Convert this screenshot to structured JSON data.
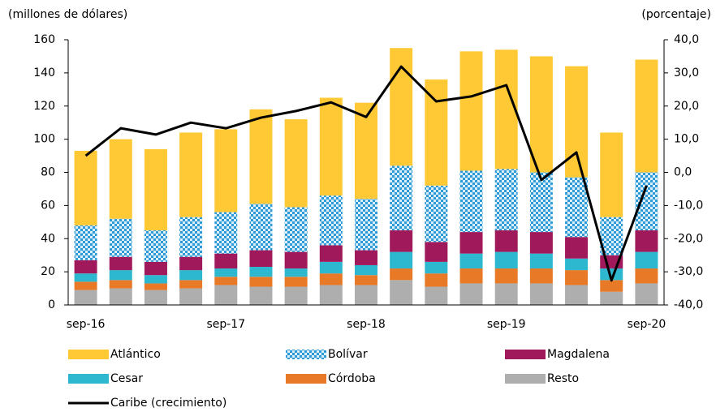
{
  "chart_data": {
    "type": "bar",
    "y_label": "(millones de dólares)",
    "y2_label": "(porcentaje)",
    "categories": [
      "sep-16",
      null,
      null,
      null,
      "sep-17",
      null,
      null,
      null,
      "sep-18",
      null,
      null,
      null,
      "sep-19",
      null,
      null,
      null,
      "sep-20"
    ],
    "stacked": true,
    "series": [
      {
        "name": "Resto",
        "color": "#aeaeae",
        "values": [
          9,
          10,
          9,
          10,
          12,
          11,
          11,
          12,
          12,
          15,
          11,
          13,
          13,
          13,
          12,
          8,
          13
        ]
      },
      {
        "name": "Córdoba",
        "color": "#e87a27",
        "values": [
          5,
          5,
          4,
          5,
          5,
          6,
          6,
          7,
          6,
          7,
          8,
          9,
          9,
          9,
          9,
          7,
          9
        ]
      },
      {
        "name": "Cesar",
        "color": "#2db8d0",
        "values": [
          5,
          6,
          5,
          6,
          5,
          6,
          5,
          7,
          6,
          10,
          7,
          9,
          10,
          9,
          7,
          7,
          10
        ]
      },
      {
        "name": "Magdalena",
        "color": "#a0195a",
        "values": [
          8,
          8,
          8,
          8,
          9,
          10,
          10,
          10,
          9,
          13,
          12,
          13,
          13,
          13,
          13,
          8,
          13
        ]
      },
      {
        "name": "Bolívar",
        "color": "#2e9bd6",
        "pattern": "checker",
        "values": [
          21,
          23,
          19,
          24,
          25,
          28,
          27,
          30,
          31,
          39,
          34,
          37,
          37,
          36,
          36,
          23,
          35
        ]
      },
      {
        "name": "Atlántico",
        "color": "#ffc935",
        "values": [
          45,
          48,
          49,
          51,
          50,
          57,
          53,
          59,
          58,
          71,
          64,
          72,
          72,
          70,
          67,
          51,
          68
        ]
      },
      {
        "name": "Caribe (crecimiento)",
        "color": "#000000",
        "type": "line",
        "axis": "y2",
        "values": [
          5.0,
          13.3,
          11.4,
          15.0,
          13.3,
          16.5,
          18.5,
          21.1,
          16.7,
          31.9,
          21.4,
          22.9,
          26.3,
          -2.3,
          6.0,
          -32.6,
          -4.0
        ]
      }
    ],
    "ylim": [
      0,
      160
    ],
    "yticks": [
      0,
      20,
      40,
      60,
      80,
      100,
      120,
      140,
      160
    ],
    "y2lim": [
      -40,
      40
    ],
    "y2ticks": [
      {
        "value": -40,
        "label": "-40,0"
      },
      {
        "value": -30,
        "label": "-30,0"
      },
      {
        "value": -20,
        "label": "-20,0"
      },
      {
        "value": -10,
        "label": "-10,0"
      },
      {
        "value": 0,
        "label": "0,0"
      },
      {
        "value": 10,
        "label": "10,0"
      },
      {
        "value": 20,
        "label": "20,0"
      },
      {
        "value": 30,
        "label": "30,0"
      },
      {
        "value": 40,
        "label": "40,0"
      }
    ]
  }
}
